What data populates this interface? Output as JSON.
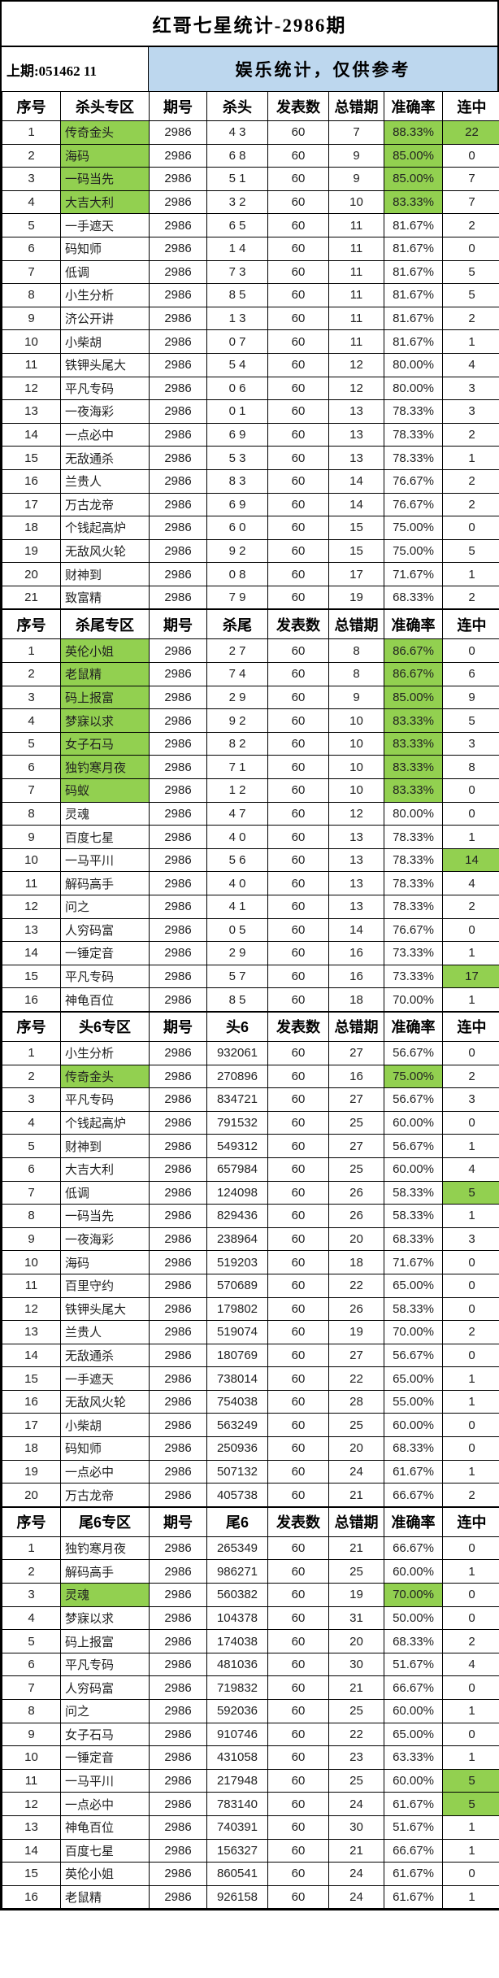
{
  "title": "红哥七星统计-2986期",
  "subheader": {
    "last_issue": "上期:051462 11",
    "notice": "娱乐统计，仅供参考"
  },
  "colors": {
    "highlight_green": "#92d050",
    "banner_blue": "#bdd7ee",
    "border": "#000000"
  },
  "tables": [
    {
      "section": "kill-head",
      "headers": [
        "序号",
        "杀头专区",
        "期号",
        "杀头",
        "发表数",
        "总错期",
        "准确率",
        "连中"
      ],
      "issue": "2986",
      "published": "60",
      "rows": [
        [
          "1",
          "传奇金头",
          "4 3",
          "7",
          "88.33%",
          "22",
          "nas"
        ],
        [
          "2",
          "海码",
          "6 8",
          "9",
          "85.00%",
          "0",
          "na"
        ],
        [
          "3",
          "一码当先",
          "5 1",
          "9",
          "85.00%",
          "7",
          "na"
        ],
        [
          "4",
          "大吉大利",
          "3 2",
          "10",
          "83.33%",
          "7",
          "na"
        ],
        [
          "5",
          "一手遮天",
          "6 5",
          "11",
          "81.67%",
          "2",
          ""
        ],
        [
          "6",
          "码知师",
          "1 4",
          "11",
          "81.67%",
          "0",
          ""
        ],
        [
          "7",
          "低调",
          "7 3",
          "11",
          "81.67%",
          "5",
          ""
        ],
        [
          "8",
          "小生分析",
          "8 5",
          "11",
          "81.67%",
          "5",
          ""
        ],
        [
          "9",
          "济公开讲",
          "1 3",
          "11",
          "81.67%",
          "2",
          ""
        ],
        [
          "10",
          "小柴胡",
          "0 7",
          "11",
          "81.67%",
          "1",
          ""
        ],
        [
          "11",
          "铁钾头尾大",
          "5 4",
          "12",
          "80.00%",
          "4",
          ""
        ],
        [
          "12",
          "平凡专码",
          "0 6",
          "12",
          "80.00%",
          "3",
          ""
        ],
        [
          "13",
          "一夜海彩",
          "0 1",
          "13",
          "78.33%",
          "3",
          ""
        ],
        [
          "14",
          "一点必中",
          "6 9",
          "13",
          "78.33%",
          "2",
          ""
        ],
        [
          "15",
          "无敌通杀",
          "5 3",
          "13",
          "78.33%",
          "1",
          ""
        ],
        [
          "16",
          "兰贵人",
          "8 3",
          "14",
          "76.67%",
          "2",
          ""
        ],
        [
          "17",
          "万古龙帝",
          "6 9",
          "14",
          "76.67%",
          "2",
          ""
        ],
        [
          "18",
          "个钱起高炉",
          "6 0",
          "15",
          "75.00%",
          "0",
          ""
        ],
        [
          "19",
          "无敌风火轮",
          "9 2",
          "15",
          "75.00%",
          "5",
          ""
        ],
        [
          "20",
          "财神到",
          "0 8",
          "17",
          "71.67%",
          "1",
          ""
        ],
        [
          "21",
          "致富精",
          "7 9",
          "19",
          "68.33%",
          "2",
          ""
        ]
      ]
    },
    {
      "section": "kill-tail",
      "headers": [
        "序号",
        "杀尾专区",
        "期号",
        "杀尾",
        "发表数",
        "总错期",
        "准确率",
        "连中"
      ],
      "issue": "2986",
      "published": "60",
      "rows": [
        [
          "1",
          "英伦小姐",
          "2 7",
          "8",
          "86.67%",
          "0",
          "na"
        ],
        [
          "2",
          "老鼠精",
          "7 4",
          "8",
          "86.67%",
          "6",
          "na"
        ],
        [
          "3",
          "码上报富",
          "2 9",
          "9",
          "85.00%",
          "9",
          "na"
        ],
        [
          "4",
          "梦寐以求",
          "9 2",
          "10",
          "83.33%",
          "5",
          "na"
        ],
        [
          "5",
          "女子石马",
          "8 2",
          "10",
          "83.33%",
          "3",
          "na"
        ],
        [
          "6",
          "独钓寒月夜",
          "7 1",
          "10",
          "83.33%",
          "8",
          "na"
        ],
        [
          "7",
          "码蚁",
          "1 2",
          "10",
          "83.33%",
          "0",
          "na"
        ],
        [
          "8",
          "灵魂",
          "4 7",
          "12",
          "80.00%",
          "0",
          ""
        ],
        [
          "9",
          "百度七星",
          "4 0",
          "13",
          "78.33%",
          "1",
          ""
        ],
        [
          "10",
          "一马平川",
          "5 6",
          "13",
          "78.33%",
          "14",
          "s"
        ],
        [
          "11",
          "解码高手",
          "4 0",
          "13",
          "78.33%",
          "4",
          ""
        ],
        [
          "12",
          "问之",
          "4 1",
          "13",
          "78.33%",
          "2",
          ""
        ],
        [
          "13",
          "人穷码富",
          "0 5",
          "14",
          "76.67%",
          "0",
          ""
        ],
        [
          "14",
          "一锤定音",
          "2 9",
          "16",
          "73.33%",
          "1",
          ""
        ],
        [
          "15",
          "平凡专码",
          "5 7",
          "16",
          "73.33%",
          "17",
          "s"
        ],
        [
          "16",
          "神龟百位",
          "8 5",
          "18",
          "70.00%",
          "1",
          ""
        ]
      ]
    },
    {
      "section": "head6",
      "headers": [
        "序号",
        "头6专区",
        "期号",
        "头6",
        "发表数",
        "总错期",
        "准确率",
        "连中"
      ],
      "issue": "2986",
      "published": "60",
      "rows": [
        [
          "1",
          "小生分析",
          "932061",
          "27",
          "56.67%",
          "0",
          ""
        ],
        [
          "2",
          "传奇金头",
          "270896",
          "16",
          "75.00%",
          "2",
          "na"
        ],
        [
          "3",
          "平凡专码",
          "834721",
          "27",
          "56.67%",
          "3",
          ""
        ],
        [
          "4",
          "个钱起高炉",
          "791532",
          "25",
          "60.00%",
          "0",
          ""
        ],
        [
          "5",
          "财神到",
          "549312",
          "27",
          "56.67%",
          "1",
          ""
        ],
        [
          "6",
          "大吉大利",
          "657984",
          "25",
          "60.00%",
          "4",
          ""
        ],
        [
          "7",
          "低调",
          "124098",
          "26",
          "58.33%",
          "5",
          "s"
        ],
        [
          "8",
          "一码当先",
          "829436",
          "26",
          "58.33%",
          "1",
          ""
        ],
        [
          "9",
          "一夜海彩",
          "238964",
          "20",
          "68.33%",
          "3",
          ""
        ],
        [
          "10",
          "海码",
          "519203",
          "18",
          "71.67%",
          "0",
          ""
        ],
        [
          "11",
          "百里守约",
          "570689",
          "22",
          "65.00%",
          "0",
          ""
        ],
        [
          "12",
          "铁钾头尾大",
          "179802",
          "26",
          "58.33%",
          "0",
          ""
        ],
        [
          "13",
          "兰贵人",
          "519074",
          "19",
          "70.00%",
          "2",
          ""
        ],
        [
          "14",
          "无敌通杀",
          "180769",
          "27",
          "56.67%",
          "0",
          ""
        ],
        [
          "15",
          "一手遮天",
          "738014",
          "22",
          "65.00%",
          "1",
          ""
        ],
        [
          "16",
          "无敌风火轮",
          "754038",
          "28",
          "55.00%",
          "1",
          ""
        ],
        [
          "17",
          "小柴胡",
          "563249",
          "25",
          "60.00%",
          "0",
          ""
        ],
        [
          "18",
          "码知师",
          "250936",
          "20",
          "68.33%",
          "0",
          ""
        ],
        [
          "19",
          "一点必中",
          "507132",
          "24",
          "61.67%",
          "1",
          ""
        ],
        [
          "20",
          "万古龙帝",
          "405738",
          "21",
          "66.67%",
          "2",
          ""
        ]
      ]
    },
    {
      "section": "tail6",
      "headers": [
        "序号",
        "尾6专区",
        "期号",
        "尾6",
        "发表数",
        "总错期",
        "准确率",
        "连中"
      ],
      "issue": "2986",
      "published": "60",
      "rows": [
        [
          "1",
          "独钓寒月夜",
          "265349",
          "21",
          "66.67%",
          "0",
          ""
        ],
        [
          "2",
          "解码高手",
          "986271",
          "25",
          "60.00%",
          "1",
          ""
        ],
        [
          "3",
          "灵魂",
          "560382",
          "19",
          "70.00%",
          "0",
          "na"
        ],
        [
          "4",
          "梦寐以求",
          "104378",
          "31",
          "50.00%",
          "0",
          ""
        ],
        [
          "5",
          "码上报富",
          "174038",
          "20",
          "68.33%",
          "2",
          ""
        ],
        [
          "6",
          "平凡专码",
          "481036",
          "30",
          "51.67%",
          "4",
          ""
        ],
        [
          "7",
          "人穷码富",
          "719832",
          "21",
          "66.67%",
          "0",
          ""
        ],
        [
          "8",
          "问之",
          "592036",
          "25",
          "60.00%",
          "1",
          ""
        ],
        [
          "9",
          "女子石马",
          "910746",
          "22",
          "65.00%",
          "0",
          ""
        ],
        [
          "10",
          "一锤定音",
          "431058",
          "23",
          "63.33%",
          "1",
          ""
        ],
        [
          "11",
          "一马平川",
          "217948",
          "25",
          "60.00%",
          "5",
          "s"
        ],
        [
          "12",
          "一点必中",
          "783140",
          "24",
          "61.67%",
          "5",
          "s"
        ],
        [
          "13",
          "神龟百位",
          "740391",
          "30",
          "51.67%",
          "1",
          ""
        ],
        [
          "14",
          "百度七星",
          "156327",
          "21",
          "66.67%",
          "1",
          ""
        ],
        [
          "15",
          "英伦小姐",
          "860541",
          "24",
          "61.67%",
          "0",
          ""
        ],
        [
          "16",
          "老鼠精",
          "926158",
          "24",
          "61.67%",
          "1",
          ""
        ]
      ]
    }
  ]
}
